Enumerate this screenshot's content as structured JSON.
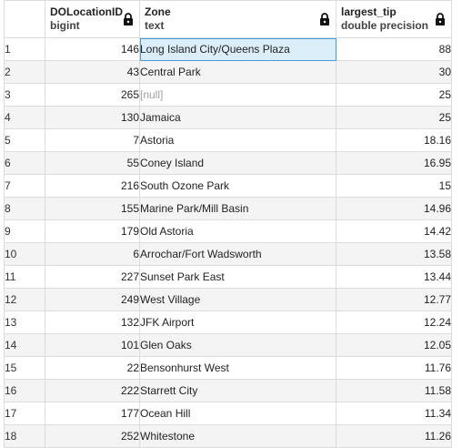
{
  "columns": [
    {
      "name": "DOLocationID",
      "type": "bigint"
    },
    {
      "name": "Zone",
      "type": "text"
    },
    {
      "name": "largest_tip",
      "type": "double precision"
    }
  ],
  "rows": [
    {
      "n": "1",
      "id": "146",
      "zone": "Long Island City/Queens Plaza",
      "tip": "88"
    },
    {
      "n": "2",
      "id": "43",
      "zone": "Central Park",
      "tip": "30"
    },
    {
      "n": "3",
      "id": "265",
      "zone": "[null]",
      "tip": "25"
    },
    {
      "n": "4",
      "id": "130",
      "zone": "Jamaica",
      "tip": "25"
    },
    {
      "n": "5",
      "id": "7",
      "zone": "Astoria",
      "tip": "18.16"
    },
    {
      "n": "6",
      "id": "55",
      "zone": "Coney Island",
      "tip": "16.95"
    },
    {
      "n": "7",
      "id": "216",
      "zone": "South Ozone Park",
      "tip": "15"
    },
    {
      "n": "8",
      "id": "155",
      "zone": "Marine Park/Mill Basin",
      "tip": "14.96"
    },
    {
      "n": "9",
      "id": "179",
      "zone": "Old Astoria",
      "tip": "14.42"
    },
    {
      "n": "10",
      "id": "6",
      "zone": "Arrochar/Fort Wadsworth",
      "tip": "13.58"
    },
    {
      "n": "11",
      "id": "227",
      "zone": "Sunset Park East",
      "tip": "13.44"
    },
    {
      "n": "12",
      "id": "249",
      "zone": "West Village",
      "tip": "12.77"
    },
    {
      "n": "13",
      "id": "132",
      "zone": "JFK Airport",
      "tip": "12.24"
    },
    {
      "n": "14",
      "id": "101",
      "zone": "Glen Oaks",
      "tip": "12.05"
    },
    {
      "n": "15",
      "id": "22",
      "zone": "Bensonhurst West",
      "tip": "11.76"
    },
    {
      "n": "16",
      "id": "222",
      "zone": "Starrett City",
      "tip": "11.58"
    },
    {
      "n": "17",
      "id": "177",
      "zone": "Ocean Hill",
      "tip": "11.34"
    },
    {
      "n": "18",
      "id": "252",
      "zone": "Whitestone",
      "tip": "11.26"
    }
  ],
  "selected_row": 0,
  "null_token": "[null]",
  "colors": {
    "selected_bg": "#dbeefa",
    "selected_border": "#4a9bd6",
    "grid_line": "#dcdcdc"
  },
  "icons": {
    "column_lock": "lock-icon"
  }
}
